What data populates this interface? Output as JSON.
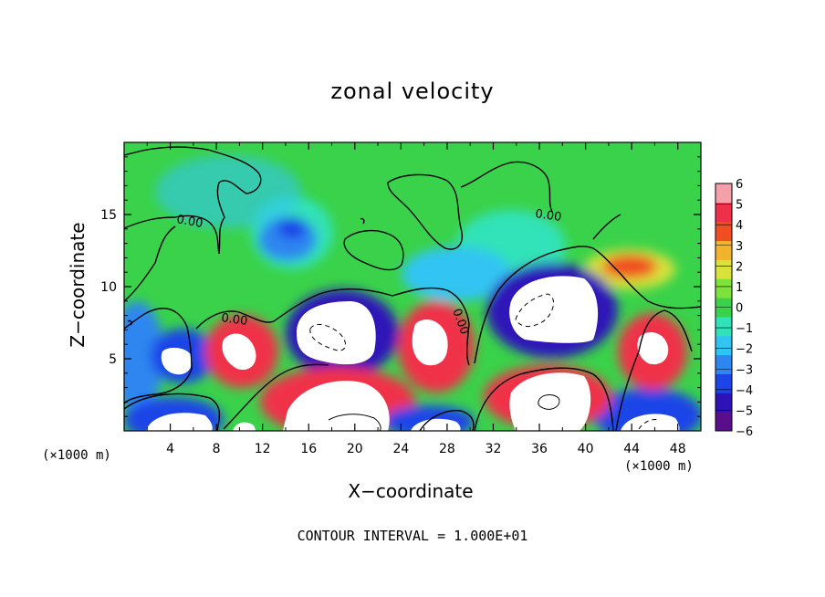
{
  "chart_data": {
    "type": "heatmap",
    "title": "zonal velocity",
    "xlabel": "X−coordinate",
    "ylabel": "Z−coordinate",
    "x_unit_label": "(×1000 m)",
    "footer": "CONTOUR INTERVAL = 1.000E+01",
    "xlim": [
      0,
      50
    ],
    "ylim": [
      0,
      20
    ],
    "x_ticks": [
      4,
      8,
      12,
      16,
      20,
      24,
      28,
      32,
      36,
      40,
      44,
      48
    ],
    "y_ticks": [
      5,
      10,
      15
    ],
    "contour_label": "0.00",
    "colorbar": {
      "min": -6,
      "max": 6,
      "ticks": [
        6,
        5,
        4,
        3,
        2,
        1,
        0,
        -1,
        -2,
        -3,
        -4,
        -5,
        -6
      ],
      "colors": [
        "#5a0d8c",
        "#2f12b8",
        "#1d44e8",
        "#2e86f0",
        "#30c4f2",
        "#30e2b8",
        "#3ad24a",
        "#7ee23a",
        "#d8e23a",
        "#f2b32c",
        "#f04e22",
        "#f0304a",
        "#f4a0a8"
      ]
    }
  }
}
